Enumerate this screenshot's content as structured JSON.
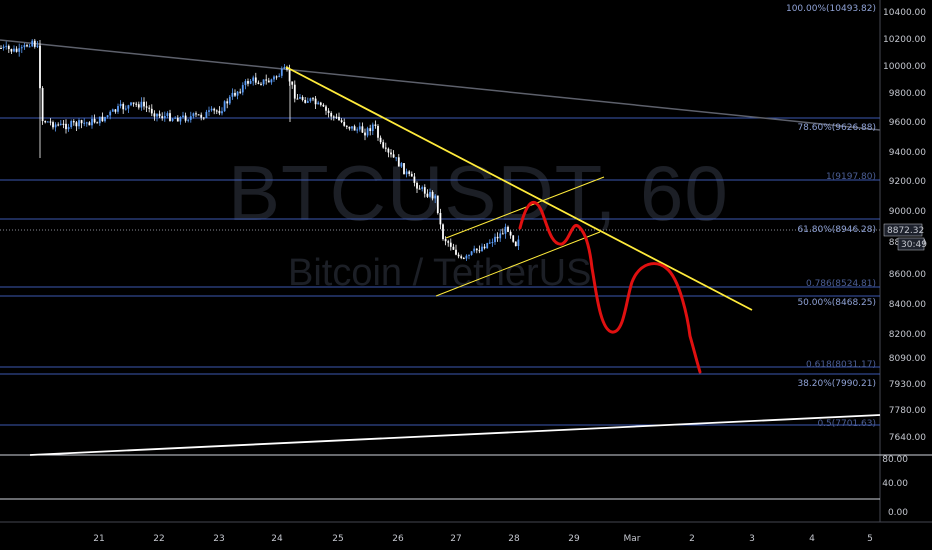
{
  "watermark": {
    "symbol": "BTCUSDT, 60",
    "pair": "Bitcoin / TetherUS"
  },
  "price_axis": {
    "labels": [
      "10400.00",
      "10200.00",
      "10000.00",
      "9800.00",
      "9600.00",
      "9400.00",
      "9200.00",
      "9000.00",
      "8800.00",
      "8600.00",
      "8400.00",
      "8200.00",
      "8090.00",
      "7930.00",
      "7780.00",
      "7640.00"
    ],
    "current_price": "8872.32",
    "countdown": "30:49"
  },
  "indicator_axis": {
    "labels": [
      "80.00",
      "40.00",
      "0.00"
    ]
  },
  "time_axis": {
    "labels": [
      "21",
      "22",
      "23",
      "24",
      "25",
      "26",
      "27",
      "28",
      "29",
      "Mar",
      "2",
      "3",
      "4",
      "5"
    ]
  },
  "fib_levels": [
    {
      "label": "100.00%(10493.82)",
      "style": "alt"
    },
    {
      "label": "78.60%(9626.88)",
      "style": "alt"
    },
    {
      "label": "1(9197.80)",
      "style": "main"
    },
    {
      "label": "61.80%(8946.28)",
      "style": "alt"
    },
    {
      "label": "0.786(8524.81)",
      "style": "main"
    },
    {
      "label": "50.00%(8468.25)",
      "style": "alt"
    },
    {
      "label": "0.618(8031.17)",
      "style": "main"
    },
    {
      "label": "38.20%(7990.21)",
      "style": "alt"
    },
    {
      "label": "0.5(7701.63)",
      "style": "main"
    }
  ],
  "colors": {
    "background": "#000000",
    "up_candle": "#5b9cf6",
    "down_candle": "#ffffff",
    "trendline": "#ffeb3b",
    "projection": "#e01010",
    "fib_line": "#3b58b0",
    "long_trend": "#5d606b",
    "support": "#ffffff"
  }
}
